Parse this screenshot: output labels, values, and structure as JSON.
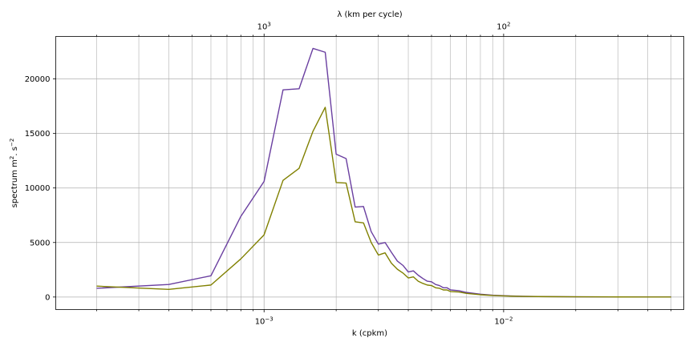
{
  "chart_data": {
    "type": "line",
    "xscale": "log",
    "xlim": [
      0.000135,
      0.0565
    ],
    "ylim": [
      -1150,
      23900
    ],
    "xlabel": "k (cpkm)",
    "ylabel_main": "spectrum m",
    "ylabel_sup1": "2",
    "ylabel_mid": ". s",
    "ylabel_sup2": "−2",
    "top_xlabel": "λ (km per cycle)",
    "grid": true,
    "yticks": [
      0,
      5000,
      10000,
      15000,
      20000
    ],
    "ytick_labels": [
      "0",
      "5000",
      "10000",
      "15000",
      "20000"
    ],
    "xticks_major": [
      0.001,
      0.01
    ],
    "xtick_labels": [
      {
        "base": "10",
        "exp": "−3"
      },
      {
        "base": "10",
        "exp": "−2"
      }
    ],
    "top_xticks_major": [
      0.001,
      0.01
    ],
    "top_xtick_labels": [
      {
        "base": "10",
        "exp": "3"
      },
      {
        "base": "10",
        "exp": "2"
      }
    ],
    "colors": {
      "series1": "#6a3fa0",
      "series2": "#808000",
      "grid": "#b0b0b0"
    },
    "series": [
      {
        "color": "#6a3fa0",
        "x": [
          0.0002,
          0.0004,
          0.0006,
          0.0008,
          0.001,
          0.0012,
          0.0014,
          0.0016,
          0.0018,
          0.002,
          0.0022,
          0.0024,
          0.0026,
          0.0028,
          0.003,
          0.0032,
          0.0034,
          0.0036,
          0.0038,
          0.004,
          0.0042,
          0.0044,
          0.0046,
          0.0048,
          0.005,
          0.0052,
          0.0054,
          0.0056,
          0.0058,
          0.006,
          0.0065,
          0.007,
          0.008,
          0.009,
          0.01,
          0.012,
          0.015,
          0.02,
          0.03,
          0.04,
          0.05
        ],
        "y": [
          800,
          1150,
          1950,
          7400,
          10600,
          19000,
          19100,
          22800,
          22450,
          13100,
          12700,
          8250,
          8300,
          6000,
          4850,
          5000,
          4100,
          3300,
          2900,
          2300,
          2400,
          2000,
          1700,
          1450,
          1400,
          1150,
          1050,
          850,
          850,
          650,
          580,
          420,
          260,
          170,
          120,
          70,
          40,
          20,
          10,
          5,
          3
        ]
      },
      {
        "color": "#808000",
        "x": [
          0.0002,
          0.0004,
          0.0006,
          0.0008,
          0.001,
          0.0012,
          0.0014,
          0.0016,
          0.0018,
          0.002,
          0.0022,
          0.0024,
          0.0026,
          0.0028,
          0.003,
          0.0032,
          0.0034,
          0.0036,
          0.0038,
          0.004,
          0.0042,
          0.0044,
          0.0046,
          0.0048,
          0.005,
          0.0052,
          0.0054,
          0.0056,
          0.0058,
          0.006,
          0.0065,
          0.007,
          0.008,
          0.009,
          0.01,
          0.012,
          0.015,
          0.02,
          0.03,
          0.04,
          0.05
        ],
        "y": [
          1000,
          700,
          1100,
          3500,
          5700,
          10700,
          11800,
          15200,
          17400,
          10500,
          10450,
          6900,
          6800,
          5000,
          3850,
          4050,
          3100,
          2550,
          2200,
          1750,
          1850,
          1450,
          1250,
          1100,
          1050,
          850,
          800,
          650,
          650,
          500,
          460,
          330,
          210,
          140,
          100,
          60,
          35,
          18,
          8,
          4,
          2
        ]
      }
    ]
  }
}
